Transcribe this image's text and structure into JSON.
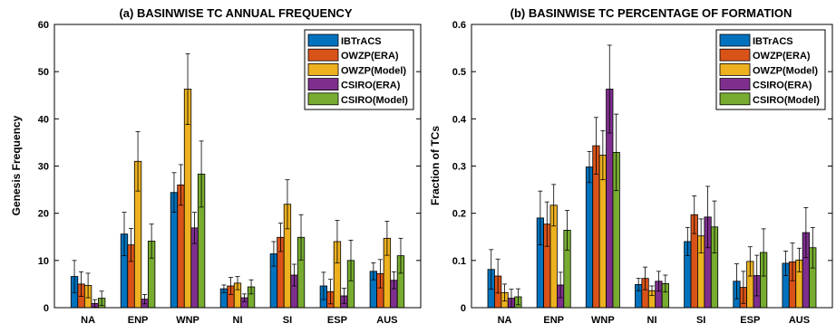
{
  "series_colors": [
    "#0072BD",
    "#D95319",
    "#EDB120",
    "#7E2F8E",
    "#77AC30"
  ],
  "chart_data": [
    {
      "type": "bar",
      "title": "(a) BASINWISE TC ANNUAL FREQUENCY",
      "xlabel": "",
      "ylabel": "Genesis Frequency",
      "ylim": [
        0,
        60
      ],
      "yticks": [
        "0",
        "10",
        "20",
        "30",
        "40",
        "50",
        "60"
      ],
      "legend": "top-right",
      "categories": [
        "NA",
        "ENP",
        "WNP",
        "NI",
        "SI",
        "ESP",
        "AUS"
      ],
      "series": [
        {
          "name": "IBTrACS",
          "values": [
            6.6,
            15.6,
            24.4,
            4.0,
            11.4,
            4.6,
            7.7
          ],
          "errors": [
            3.4,
            4.6,
            4.2,
            0.8,
            2.6,
            2.9,
            1.8
          ]
        },
        {
          "name": "OWZP(ERA)",
          "values": [
            5.0,
            13.3,
            26.0,
            4.6,
            14.9,
            3.4,
            7.2
          ],
          "errors": [
            2.6,
            3.5,
            4.3,
            1.8,
            3.0,
            2.6,
            3.0
          ]
        },
        {
          "name": "OWZP(Model)",
          "values": [
            4.7,
            31.0,
            46.3,
            5.2,
            21.9,
            14.0,
            14.7
          ],
          "errors": [
            2.6,
            6.3,
            7.5,
            1.4,
            5.2,
            4.5,
            3.6
          ]
        },
        {
          "name": "CSIRO(ERA)",
          "values": [
            0.9,
            1.8,
            16.9,
            2.1,
            6.9,
            2.5,
            5.8
          ],
          "errors": [
            0.8,
            1.0,
            3.3,
            0.8,
            2.3,
            1.6,
            1.8
          ]
        },
        {
          "name": "CSIRO(Model)",
          "values": [
            2.0,
            14.1,
            28.3,
            4.4,
            14.9,
            10.0,
            11.0
          ],
          "errors": [
            1.5,
            3.6,
            7.0,
            1.5,
            4.8,
            4.3,
            3.7
          ]
        }
      ]
    },
    {
      "type": "bar",
      "title": "(b) BASINWISE TC PERCENTAGE OF FORMATION",
      "xlabel": "",
      "ylabel": "Fraction of TCs",
      "ylim": [
        0,
        0.6
      ],
      "yticks": [
        "0",
        "0.1",
        "0.2",
        "0.3",
        "0.4",
        "0.5",
        "0.6"
      ],
      "legend": "top-right",
      "categories": [
        "NA",
        "ENP",
        "WNP",
        "NI",
        "SI",
        "ESP",
        "AUS"
      ],
      "series": [
        {
          "name": "IBTrACS",
          "values": [
            0.081,
            0.19,
            0.298,
            0.049,
            0.14,
            0.056,
            0.094
          ],
          "errors": [
            0.042,
            0.057,
            0.033,
            0.013,
            0.03,
            0.037,
            0.026
          ]
        },
        {
          "name": "OWZP(ERA)",
          "values": [
            0.067,
            0.177,
            0.343,
            0.062,
            0.197,
            0.043,
            0.097
          ],
          "errors": [
            0.036,
            0.047,
            0.06,
            0.024,
            0.04,
            0.034,
            0.04
          ]
        },
        {
          "name": "OWZP(Model)",
          "values": [
            0.032,
            0.217,
            0.323,
            0.036,
            0.152,
            0.098,
            0.101
          ],
          "errors": [
            0.018,
            0.044,
            0.052,
            0.01,
            0.036,
            0.031,
            0.025
          ]
        },
        {
          "name": "CSIRO(ERA)",
          "values": [
            0.02,
            0.048,
            0.463,
            0.056,
            0.192,
            0.068,
            0.159
          ],
          "errors": [
            0.019,
            0.027,
            0.093,
            0.021,
            0.065,
            0.043,
            0.053
          ]
        },
        {
          "name": "CSIRO(Model)",
          "values": [
            0.023,
            0.164,
            0.329,
            0.051,
            0.171,
            0.117,
            0.127
          ],
          "errors": [
            0.017,
            0.042,
            0.081,
            0.018,
            0.055,
            0.05,
            0.043
          ]
        }
      ]
    }
  ]
}
